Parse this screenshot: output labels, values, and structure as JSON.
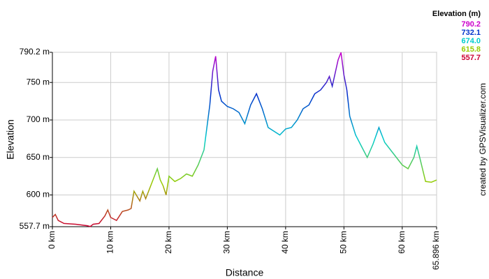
{
  "chart_data": {
    "type": "line",
    "xlabel": "Distance",
    "ylabel": "Elevation",
    "credit": "created by GPSVisualizer.com",
    "legend_title": "Elevation (m)",
    "legend": [
      {
        "value": 790.2,
        "label": "790.2",
        "color": "#cc00cc"
      },
      {
        "value": 732.1,
        "label": "732.1",
        "color": "#0033cc"
      },
      {
        "value": 674.0,
        "label": "674.0",
        "color": "#00cccc"
      },
      {
        "value": 615.8,
        "label": "615.8",
        "color": "#99cc00"
      },
      {
        "value": 557.7,
        "label": "557.7",
        "color": "#cc0033"
      }
    ],
    "xlim": [
      0,
      65.896
    ],
    "ylim": [
      557.7,
      790.2
    ],
    "xticks": [
      {
        "value": 0,
        "label": "0 km"
      },
      {
        "value": 10,
        "label": "10 km"
      },
      {
        "value": 20,
        "label": "20 km"
      },
      {
        "value": 30,
        "label": "30 km"
      },
      {
        "value": 40,
        "label": "40 km"
      },
      {
        "value": 50,
        "label": "50 km"
      },
      {
        "value": 60,
        "label": "60 km"
      },
      {
        "value": 65.896,
        "label": "65.896 km"
      }
    ],
    "yticks": [
      {
        "value": 557.7,
        "label": "557.7 m"
      },
      {
        "value": 600,
        "label": "600 m"
      },
      {
        "value": 650,
        "label": "650 m"
      },
      {
        "value": 700,
        "label": "700 m"
      },
      {
        "value": 750,
        "label": "750 m"
      },
      {
        "value": 790.2,
        "label": "790.2 m"
      }
    ],
    "grid": true,
    "x": [
      0,
      0.5,
      1,
      2,
      4,
      6,
      6.5,
      7,
      8,
      9,
      9.5,
      10,
      11,
      12,
      13,
      13.5,
      14,
      15,
      15.5,
      16,
      17,
      18,
      18.5,
      19,
      19.5,
      20,
      21,
      22,
      23,
      24,
      25,
      26,
      26.5,
      27,
      27.5,
      28,
      28.5,
      29,
      30,
      31,
      32,
      33,
      34,
      35,
      36,
      37,
      38,
      39,
      40,
      41,
      42,
      43,
      44,
      45,
      46,
      47,
      47.5,
      48,
      49,
      49.5,
      50,
      50.5,
      51,
      52,
      53,
      54,
      55,
      56,
      57,
      58,
      59,
      60,
      61,
      62,
      62.5,
      63,
      64,
      65,
      65.896
    ],
    "values": [
      570,
      574,
      566,
      562,
      561,
      559,
      558,
      561,
      562,
      572,
      580,
      570,
      566,
      578,
      580,
      582,
      605,
      592,
      605,
      595,
      615,
      635,
      620,
      612,
      600,
      625,
      618,
      622,
      628,
      625,
      640,
      660,
      690,
      720,
      765,
      785,
      740,
      725,
      718,
      715,
      710,
      695,
      720,
      735,
      715,
      690,
      685,
      680,
      688,
      690,
      700,
      715,
      720,
      735,
      740,
      750,
      758,
      745,
      780,
      790,
      760,
      740,
      705,
      680,
      665,
      650,
      668,
      690,
      670,
      660,
      650,
      640,
      635,
      650,
      665,
      650,
      618,
      617,
      620
    ]
  }
}
